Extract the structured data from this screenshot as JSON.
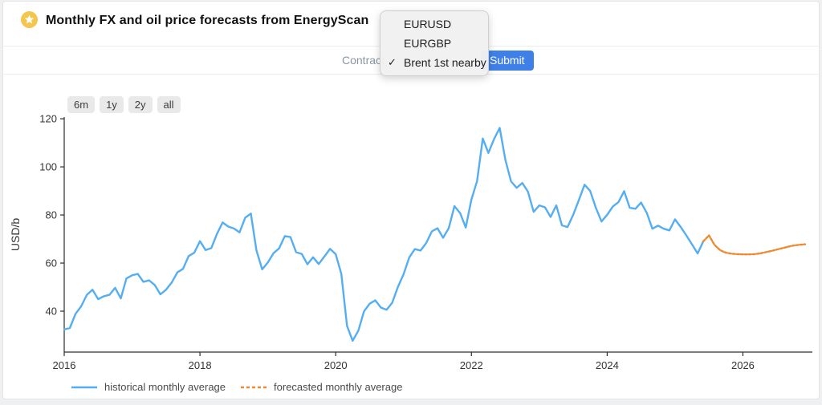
{
  "header": {
    "title": "Monthly FX and oil price forecasts from EnergyScan",
    "star_color": "#f4c64d"
  },
  "toolbar": {
    "contract_label": "Contract",
    "submit_label": "Submit",
    "submit_color": "#3f80e8"
  },
  "dropdown": {
    "check_glyph": "✓",
    "items": [
      {
        "label": "EURUSD",
        "checked": false
      },
      {
        "label": "EURGBP",
        "checked": false
      },
      {
        "label": "Brent 1st nearby",
        "checked": true
      }
    ]
  },
  "range_buttons": [
    "6m",
    "1y",
    "2y",
    "all"
  ],
  "chart_data": {
    "type": "line",
    "ylabel": "USD/b",
    "x_ticks": [
      2016,
      2018,
      2020,
      2022,
      2024,
      2026
    ],
    "y_ticks": [
      40,
      60,
      80,
      100,
      120
    ],
    "x_range": [
      2016.0,
      2027.0
    ],
    "y_range": [
      23.0,
      120.7
    ],
    "grid": false,
    "legend_position": "bottom-left",
    "axis_color": "#2e2e2e",
    "series": [
      {
        "name": "historical monthly average",
        "color": "#55aef2",
        "dashed": false,
        "start_year": 2016,
        "start_month": 1,
        "values": [
          32.4,
          33.0,
          38.9,
          42.0,
          46.8,
          48.9,
          45.0,
          46.2,
          46.8,
          49.7,
          45.3,
          53.6,
          54.9,
          55.5,
          52.2,
          52.8,
          50.9,
          47.0,
          48.9,
          51.9,
          56.1,
          57.6,
          62.9,
          64.3,
          69.1,
          65.4,
          66.2,
          72.1,
          76.9,
          75.2,
          74.4,
          72.8,
          78.9,
          80.6,
          65.2,
          57.4,
          60.2,
          64.1,
          66.1,
          71.2,
          70.8,
          64.5,
          63.8,
          59.5,
          62.4,
          59.6,
          62.7,
          65.9,
          63.7,
          55.5,
          33.9,
          27.7,
          31.9,
          39.9,
          43.1,
          44.5,
          41.5,
          40.6,
          43.5,
          50.1,
          55.3,
          62.3,
          65.8,
          65.2,
          68.3,
          73.2,
          74.5,
          70.5,
          74.6,
          83.7,
          80.8,
          74.8,
          86.5,
          94.1,
          111.8,
          105.8,
          111.6,
          116.2,
          103.0,
          94.0,
          91.3,
          93.3,
          89.7,
          81.3,
          84.0,
          83.2,
          79.2,
          84.0,
          75.7,
          75.0,
          80.1,
          86.2,
          92.6,
          90.0,
          83.0,
          77.3,
          80.1,
          83.5,
          85.4,
          89.9,
          83.0,
          82.6,
          85.2,
          80.9,
          74.3,
          75.6,
          74.3,
          73.6,
          78.2,
          75.0,
          71.5,
          67.8,
          64.0,
          69.0
        ]
      },
      {
        "name": "forecasted monthly average",
        "color": "#ec8b33",
        "dashed": true,
        "start_year": 2025,
        "start_month": 6,
        "values": [
          69.0,
          71.5,
          67.5,
          65.3,
          64.3,
          63.9,
          63.7,
          63.6,
          63.6,
          63.7,
          64.0,
          64.5,
          65.0,
          65.6,
          66.2,
          66.8,
          67.3,
          67.6,
          67.8
        ]
      }
    ]
  }
}
